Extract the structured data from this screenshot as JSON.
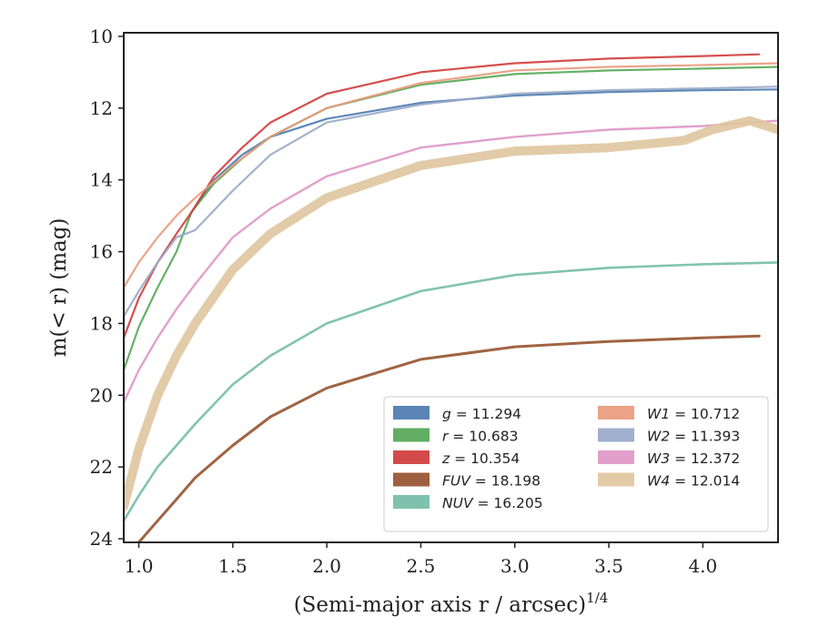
{
  "chart_data": {
    "type": "line",
    "xlabel": "(Semi-major axis r / arcsec)",
    "xlabel_superscript": "1/4",
    "ylabel": "m(< r) (mag)",
    "xlim": [
      0.92,
      4.4
    ],
    "ylim": [
      24.1,
      9.9
    ],
    "y_inverted": true,
    "grid": false,
    "legend_position": "lower-right",
    "x_ticks": [
      "1.0",
      "1.5",
      "2.0",
      "2.5",
      "3.0",
      "3.5",
      "4.0"
    ],
    "y_ticks": [
      "10",
      "12",
      "14",
      "16",
      "18",
      "20",
      "22",
      "24"
    ],
    "series": [
      {
        "name": "g = 11.294",
        "label_var": "g",
        "label_val": "= 11.294",
        "color": "#4c7bb0",
        "width": 2.2,
        "x": [
          1.28,
          1.4,
          1.55,
          1.7,
          2.0,
          2.5,
          3.0,
          3.5,
          4.0,
          4.4
        ],
        "y": [
          14.9,
          14.0,
          13.3,
          12.8,
          12.3,
          11.85,
          11.65,
          11.55,
          11.5,
          11.48
        ]
      },
      {
        "name": "r = 10.683",
        "label_var": "r",
        "label_val": "= 10.683",
        "color": "#55a755",
        "width": 2.2,
        "x": [
          0.92,
          1.0,
          1.1,
          1.2,
          1.28,
          1.4,
          1.55,
          1.7,
          2.0,
          2.5,
          3.0,
          3.5,
          4.0,
          4.4
        ],
        "y": [
          19.3,
          18.1,
          17.0,
          16.0,
          14.9,
          14.1,
          13.4,
          12.8,
          12.0,
          11.35,
          11.05,
          10.95,
          10.9,
          10.85
        ]
      },
      {
        "name": "z = 10.354",
        "label_var": "z",
        "label_val": "= 10.354",
        "color": "#d03c3c",
        "width": 2.2,
        "x": [
          0.92,
          1.0,
          1.1,
          1.2,
          1.28,
          1.4,
          1.55,
          1.7,
          2.0,
          2.5,
          3.0,
          3.5,
          4.0,
          4.3
        ],
        "y": [
          18.4,
          17.3,
          16.3,
          15.5,
          14.9,
          13.9,
          13.1,
          12.4,
          11.6,
          11.0,
          10.75,
          10.62,
          10.55,
          10.5
        ]
      },
      {
        "name": "FUV = 18.198",
        "label_var": "FUV",
        "label_val": "= 18.198",
        "color": "#96532e",
        "width": 3.0,
        "x": [
          1.0,
          1.1,
          1.2,
          1.3,
          1.5,
          1.7,
          2.0,
          2.5,
          3.0,
          3.5,
          4.0,
          4.3
        ],
        "y": [
          24.1,
          23.5,
          22.9,
          22.3,
          21.4,
          20.6,
          19.8,
          19.0,
          18.65,
          18.5,
          18.4,
          18.35
        ]
      },
      {
        "name": "NUV = 16.205",
        "label_var": "NUV",
        "label_val": "= 16.205",
        "color": "#74bca5",
        "width": 2.6,
        "x": [
          0.92,
          1.0,
          1.1,
          1.2,
          1.3,
          1.5,
          1.7,
          2.0,
          2.5,
          3.0,
          3.5,
          4.0,
          4.4
        ],
        "y": [
          23.5,
          22.8,
          22.0,
          21.4,
          20.8,
          19.7,
          18.9,
          18.0,
          17.1,
          16.65,
          16.45,
          16.35,
          16.3
        ]
      },
      {
        "name": "W1 = 10.712",
        "label_var": "W1",
        "label_val": "= 10.712",
        "color": "#e99a7c",
        "width": 2.2,
        "x": [
          0.92,
          1.0,
          1.1,
          1.2,
          1.3,
          1.5,
          1.7,
          2.0,
          2.5,
          3.0,
          3.5,
          4.0,
          4.4
        ],
        "y": [
          17.0,
          16.3,
          15.6,
          15.0,
          14.5,
          13.6,
          12.8,
          12.0,
          11.3,
          10.95,
          10.85,
          10.8,
          10.75
        ]
      },
      {
        "name": "W2 = 11.393",
        "label_var": "W2",
        "label_val": "= 11.393",
        "color": "#98a8c8",
        "width": 2.2,
        "x": [
          0.92,
          1.0,
          1.1,
          1.2,
          1.3,
          1.5,
          1.7,
          2.0,
          2.5,
          3.0,
          3.5,
          4.0,
          4.4
        ],
        "y": [
          17.8,
          17.1,
          16.3,
          15.6,
          15.4,
          14.3,
          13.3,
          12.4,
          11.9,
          11.6,
          11.5,
          11.45,
          11.4
        ]
      },
      {
        "name": "W3 = 12.372",
        "label_var": "W3",
        "label_val": "= 12.372",
        "color": "#de97c7",
        "width": 2.4,
        "x": [
          0.92,
          1.0,
          1.1,
          1.2,
          1.3,
          1.5,
          1.7,
          2.0,
          2.5,
          3.0,
          3.5,
          4.0,
          4.4
        ],
        "y": [
          20.2,
          19.3,
          18.4,
          17.6,
          16.9,
          15.6,
          14.8,
          13.9,
          13.1,
          12.8,
          12.6,
          12.5,
          12.35
        ]
      },
      {
        "name": "W4 = 12.014",
        "label_var": "W4",
        "label_val": "= 12.014",
        "color": "#dfc59e",
        "width": 10,
        "x": [
          0.92,
          1.0,
          1.1,
          1.2,
          1.3,
          1.5,
          1.7,
          2.0,
          2.5,
          3.0,
          3.5,
          3.9,
          4.05,
          4.25,
          4.4
        ],
        "y": [
          23.1,
          21.5,
          20.0,
          18.9,
          18.0,
          16.5,
          15.5,
          14.5,
          13.6,
          13.2,
          13.1,
          12.9,
          12.6,
          12.35,
          12.6
        ]
      }
    ]
  }
}
